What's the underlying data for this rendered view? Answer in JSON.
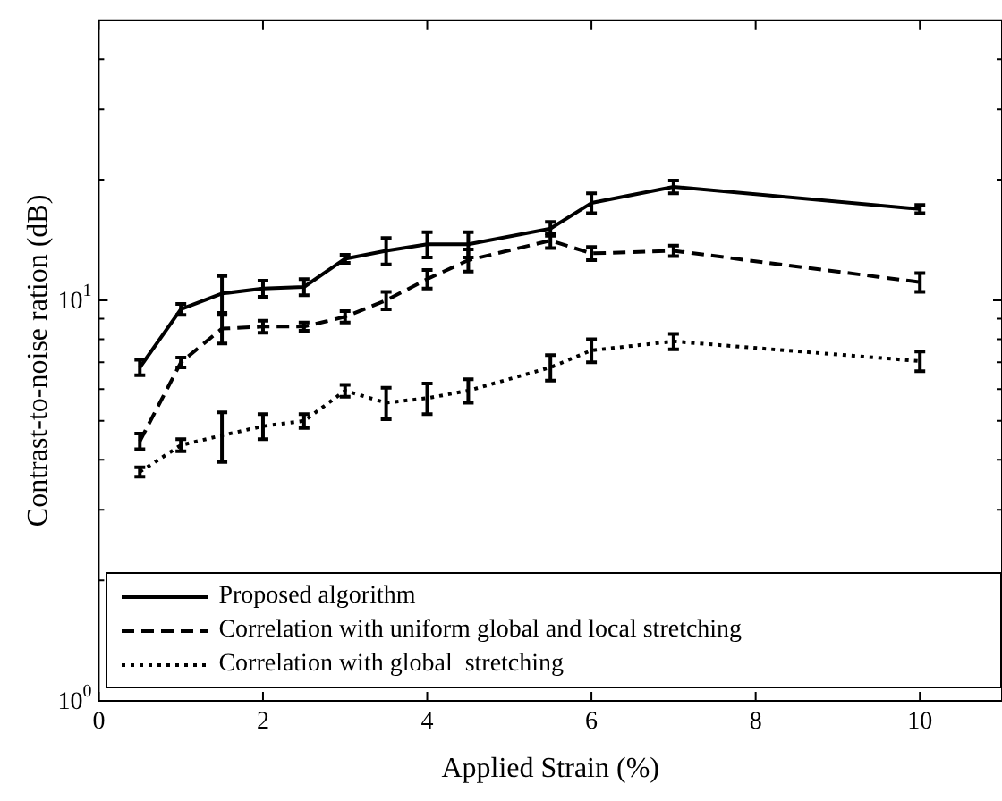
{
  "chart_data": {
    "type": "line",
    "xlabel": "Applied Strain (%)",
    "ylabel": "Contrast-to-noise ration (dB)",
    "x": [
      0.5,
      1,
      1.5,
      2,
      2.5,
      3,
      3.5,
      4,
      4.5,
      5.5,
      6,
      7,
      10
    ],
    "series": [
      {
        "name": "Proposed algorithm",
        "color": "#000000",
        "line_style": "solid",
        "values": [
          6.8,
          9.5,
          10.4,
          10.7,
          10.8,
          12.7,
          13.3,
          13.8,
          13.8,
          15.1,
          17.5,
          19.2,
          16.9
        ],
        "errors": [
          0.3,
          0.3,
          1.1,
          0.5,
          0.5,
          0.3,
          1.0,
          1.0,
          1.0,
          0.6,
          1.0,
          0.7,
          0.4
        ]
      },
      {
        "name": "Correlation with uniform global and local stretching",
        "color": "#000000",
        "line_style": "dashed",
        "values": [
          4.45,
          7.0,
          8.5,
          8.6,
          8.6,
          9.1,
          10.0,
          11.3,
          12.6,
          14.1,
          13.1,
          13.3,
          11.1
        ],
        "errors": [
          0.2,
          0.2,
          0.7,
          0.3,
          0.2,
          0.3,
          0.5,
          0.6,
          0.8,
          0.6,
          0.5,
          0.4,
          0.6
        ]
      },
      {
        "name": "Correlation with global  stretching",
        "color": "#000000",
        "line_style": "dotted",
        "values": [
          3.73,
          4.35,
          4.6,
          4.85,
          5.0,
          5.95,
          5.55,
          5.7,
          5.95,
          6.8,
          7.5,
          7.9,
          7.05
        ],
        "errors": [
          0.1,
          0.15,
          0.65,
          0.35,
          0.2,
          0.2,
          0.5,
          0.5,
          0.4,
          0.5,
          0.5,
          0.35,
          0.4
        ]
      }
    ],
    "log": "y",
    "xlim": [
      0,
      11
    ],
    "xticks": [
      0,
      2,
      4,
      6,
      8,
      10
    ],
    "ylim": [
      1,
      50
    ],
    "yticks": [
      {
        "value": 1,
        "label": "10$^{0}$"
      },
      {
        "value": 2,
        "label": null
      },
      {
        "value": 3,
        "label": null
      },
      {
        "value": 4,
        "label": null
      },
      {
        "value": 5,
        "label": null
      },
      {
        "value": 6,
        "label": null
      },
      {
        "value": 7,
        "label": null
      },
      {
        "value": 8,
        "label": null
      },
      {
        "value": 9,
        "label": null
      },
      {
        "value": 10,
        "label": "10$^{1}$"
      },
      {
        "value": 20,
        "label": null
      },
      {
        "value": 30,
        "label": null
      },
      {
        "value": 40,
        "label": null
      }
    ],
    "grid": false,
    "legend": "bottom"
  }
}
